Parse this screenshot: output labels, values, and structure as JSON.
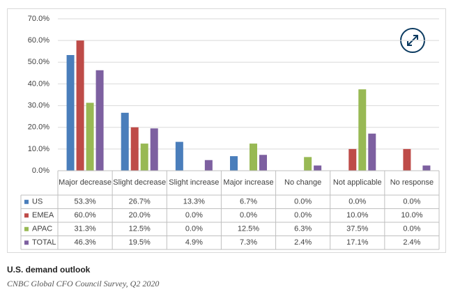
{
  "chart_data": {
    "type": "bar",
    "title": "U.S. demand outlook",
    "subtitle": "CNBC Global CFO Council Survey, Q2 2020",
    "categories": [
      "Major decrease",
      "Slight decrease",
      "Slight increase",
      "Major increase",
      "No change",
      "Not applicable",
      "No response"
    ],
    "series": [
      {
        "name": "US",
        "color": "#4a7ebb",
        "values": [
          53.3,
          26.7,
          13.3,
          6.7,
          0,
          0,
          0
        ],
        "value_labels": [
          "53.3%",
          "26.7%",
          "13.3%",
          "6.7%",
          "0.0%",
          "0.0%",
          "0.0%"
        ]
      },
      {
        "name": "EMEA",
        "color": "#be4b48",
        "values": [
          60,
          20,
          0,
          0,
          0,
          10,
          10
        ],
        "value_labels": [
          "60.0%",
          "20.0%",
          "0.0%",
          "0.0%",
          "0.0%",
          "10.0%",
          "10.0%"
        ]
      },
      {
        "name": "APAC",
        "color": "#98b954",
        "values": [
          31.3,
          12.5,
          0,
          12.5,
          6.3,
          37.5,
          0
        ],
        "value_labels": [
          "31.3%",
          "12.5%",
          "0.0%",
          "12.5%",
          "6.3%",
          "37.5%",
          "0.0%"
        ]
      },
      {
        "name": "TOTAL",
        "color": "#7d60a0",
        "values": [
          46.3,
          19.5,
          4.9,
          7.3,
          2.4,
          17.1,
          2.4
        ],
        "value_labels": [
          "46.3%",
          "19.5%",
          "4.9%",
          "7.3%",
          "2.4%",
          "17.1%",
          "2.4%"
        ]
      }
    ],
    "ylim": [
      0,
      70
    ],
    "yticks": [
      {
        "value": 0,
        "label": "0.0%"
      },
      {
        "value": 10,
        "label": "10.0%"
      },
      {
        "value": 20,
        "label": "20.0%"
      },
      {
        "value": 30,
        "label": "30.0%"
      },
      {
        "value": 40,
        "label": "40.0%"
      },
      {
        "value": 50,
        "label": "50.0%"
      },
      {
        "value": 60,
        "label": "60.0%"
      },
      {
        "value": 70,
        "label": "70.0%"
      }
    ],
    "grid": true
  }
}
